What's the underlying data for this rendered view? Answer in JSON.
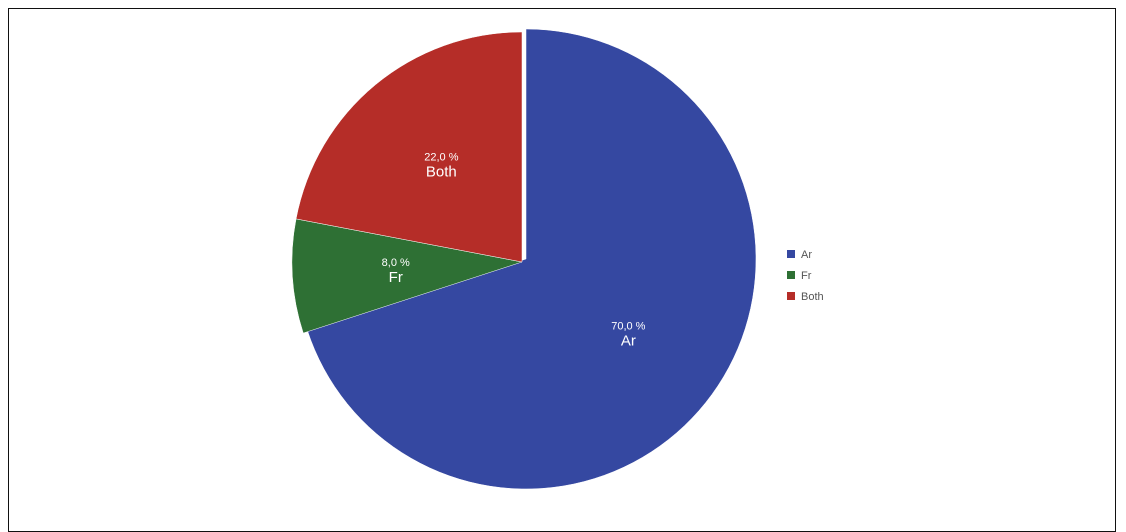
{
  "chart_data": {
    "type": "pie",
    "title": "",
    "legend_position": "right",
    "slices": [
      {
        "label": "Ar",
        "value": 70.0,
        "percent_label": "70,0 %",
        "color": "#3548a1",
        "exploded": true
      },
      {
        "label": "Fr",
        "value": 8.0,
        "percent_label": "8,0 %",
        "color": "#2e7034"
      },
      {
        "label": "Both",
        "value": 22.0,
        "percent_label": "22,0 %",
        "color": "#b52d28"
      }
    ],
    "legend": [
      "Ar",
      "Fr",
      "Both"
    ]
  }
}
